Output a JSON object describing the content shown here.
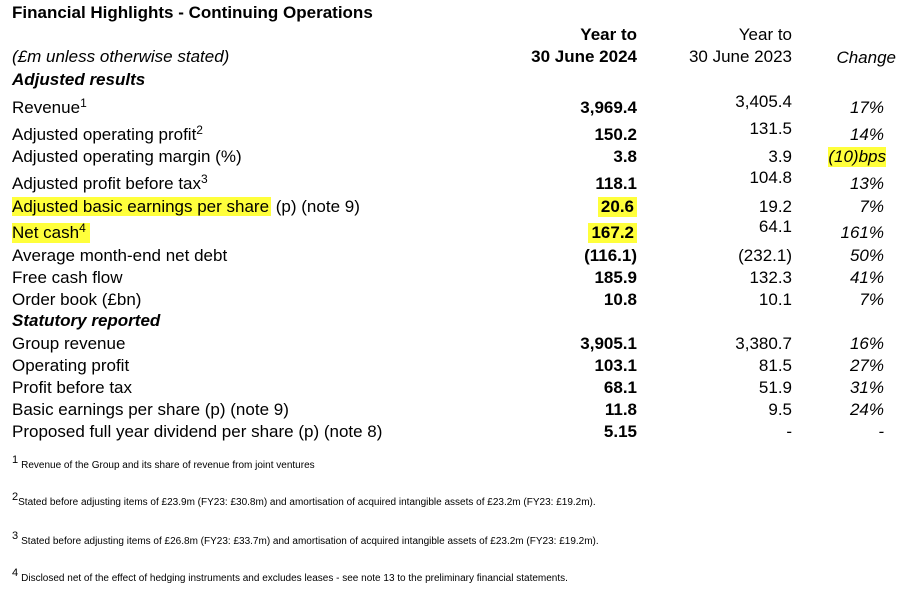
{
  "title": "Financial Highlights - Continuing Operations",
  "headers": {
    "units": "(£m unless otherwise stated)",
    "current_line1": "Year to",
    "current_line2": "30 June 2024",
    "prior_line1": "Year to",
    "prior_line2": "30 June 2023",
    "change": "Change"
  },
  "sections": {
    "adjusted": "Adjusted results",
    "statutory": "Statutory reported"
  },
  "rows": [
    {
      "label": "Revenue",
      "sup": "1",
      "current": "3,969.4",
      "prior": "3,405.4",
      "change": "17%"
    },
    {
      "label": "Adjusted operating profit",
      "sup": "2",
      "current": "150.2",
      "prior": "131.5",
      "change": "14%"
    },
    {
      "label": "Adjusted operating margin (%)",
      "sup": "",
      "current": "3.8",
      "prior": "3.9",
      "change": "(10)bps"
    },
    {
      "label": "Adjusted profit before tax",
      "sup": "3",
      "current": "118.1",
      "prior": "104.8",
      "change": "13%"
    },
    {
      "label": "Adjusted basic earnings per share",
      "label_suffix": " (p) (note 9)",
      "sup": "",
      "current": "20.6",
      "prior": "19.2",
      "change": "7%"
    },
    {
      "label": "Net cash",
      "sup": "4",
      "current": "167.2",
      "prior": "64.1",
      "change": "161%"
    },
    {
      "label": "Average month-end net debt",
      "sup": "",
      "current": "(116.1)",
      "prior": "(232.1)",
      "change": "50%"
    },
    {
      "label": "Free cash flow",
      "sup": "",
      "current": "185.9",
      "prior": "132.3",
      "change": "41%"
    },
    {
      "label": "Order book (£bn)",
      "sup": "",
      "current": "10.8",
      "prior": "10.1",
      "change": "7%"
    },
    {
      "label": "Group revenue",
      "sup": "",
      "current": "3,905.1",
      "prior": "3,380.7",
      "change": "16%"
    },
    {
      "label": "Operating profit",
      "sup": "",
      "current": "103.1",
      "prior": "81.5",
      "change": "27%"
    },
    {
      "label": "Profit before tax",
      "sup": "",
      "current": "68.1",
      "prior": "51.9",
      "change": "31%"
    },
    {
      "label": "Basic earnings per share (p) (note 9)",
      "sup": "",
      "current": "11.8",
      "prior": "9.5",
      "change": "24%"
    },
    {
      "label": "Proposed full year dividend per share (p) (note 8)",
      "sup": "",
      "current": "5.15",
      "prior": "-",
      "change": "-"
    }
  ],
  "footnotes": [
    {
      "num": "1",
      "text": "Revenue of the Group and its share of revenue from joint ventures"
    },
    {
      "num": "2",
      "text": "Stated before adjusting items of £23.9m (FY23: £30.8m) and amortisation of acquired intangible assets of £23.2m (FY23: £19.2m)."
    },
    {
      "num": "3",
      "text": "Stated before adjusting items of £26.8m (FY23: £33.7m) and amortisation of acquired intangible assets of £23.2m (FY23: £19.2m)."
    },
    {
      "num": "4",
      "text": "Disclosed net of the effect of hedging instruments and excludes leases - see note 13 to the preliminary financial statements."
    }
  ],
  "highlight_color": "#ffff3b"
}
